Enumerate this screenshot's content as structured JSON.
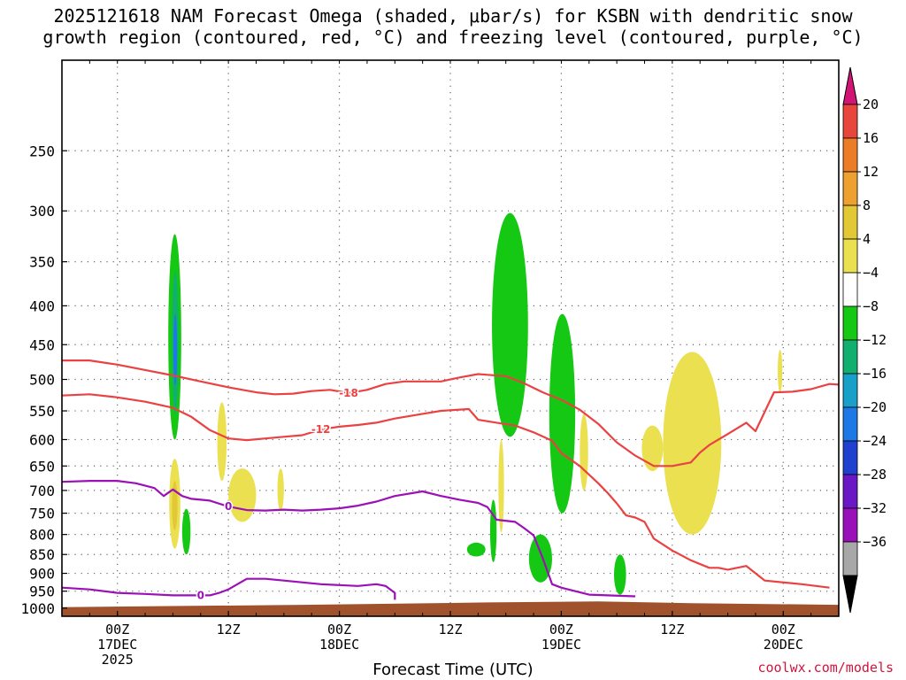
{
  "title_line1": "2025121618 NAM Forecast Omega (shaded, μbar/s) for KSBN with dendritic snow",
  "title_line2": "growth region (contoured, red, °C) and freezing level (contoured, purple, °C)",
  "xlabel": "Forecast Time (UTC)",
  "credit": "coolwx.com/models",
  "chart_data": {
    "type": "contour",
    "title": "2025121618 NAM Forecast Omega (shaded, μbar/s) for KSBN with dendritic snow growth region (contoured, red, °C) and freezing level (contoured, purple, °C)",
    "xlabel": "Forecast Time (UTC)",
    "ylabel": "",
    "xlim_hours": [
      -6,
      78
    ],
    "ylim_hpa": [
      1025,
      190
    ],
    "y_scale": "log pressure",
    "grid": true,
    "y_ticks": [
      250,
      300,
      350,
      400,
      450,
      500,
      550,
      600,
      650,
      700,
      750,
      800,
      850,
      900,
      950,
      1000
    ],
    "x_ticks": [
      {
        "hour": 0,
        "lines": [
          "00Z",
          "17DEC",
          "2025"
        ]
      },
      {
        "hour": 12,
        "lines": [
          "12Z"
        ]
      },
      {
        "hour": 24,
        "lines": [
          "00Z",
          "18DEC"
        ]
      },
      {
        "hour": 36,
        "lines": [
          "12Z"
        ]
      },
      {
        "hour": 48,
        "lines": [
          "00Z",
          "19DEC"
        ]
      },
      {
        "hour": 60,
        "lines": [
          "12Z"
        ]
      },
      {
        "hour": 72,
        "lines": [
          "00Z",
          "20DEC"
        ]
      }
    ],
    "colorbar": {
      "levels": [
        -36,
        -32,
        -28,
        -24,
        -20,
        -16,
        -12,
        -8,
        -4,
        4,
        8,
        12,
        16,
        20
      ],
      "labels": [
        "20",
        "16",
        "12",
        "8",
        "4",
        "−4",
        "−8",
        "−12",
        "−16",
        "−20",
        "−24",
        "−28",
        "−32",
        "−36"
      ],
      "colors_top_to_bottom": [
        "#d21474",
        "#e8453c",
        "#ec7c28",
        "#eea030",
        "#e2c834",
        "#eae050",
        "#ffffff",
        "#14c814",
        "#12b070",
        "#18a0c8",
        "#1e78e6",
        "#2040d0",
        "#6a18c6",
        "#9a10b8",
        "#a8a8a8",
        "#000000"
      ]
    },
    "ground_color": "#a0522d",
    "contours": [
      {
        "label": "-18",
        "color": "#ea4242",
        "points": [
          [
            -6,
            472
          ],
          [
            -3,
            472
          ],
          [
            0,
            478
          ],
          [
            3,
            486
          ],
          [
            6,
            494
          ],
          [
            9,
            503
          ],
          [
            12,
            512
          ],
          [
            15,
            520
          ],
          [
            17,
            523
          ],
          [
            19,
            522
          ],
          [
            21,
            518
          ],
          [
            23,
            516
          ],
          [
            25,
            521
          ],
          [
            27,
            516
          ],
          [
            29,
            507
          ],
          [
            31,
            503
          ],
          [
            33,
            503
          ],
          [
            35,
            503
          ],
          [
            37,
            497
          ],
          [
            39,
            492
          ],
          [
            40,
            493
          ],
          [
            42,
            495
          ],
          [
            44,
            506
          ],
          [
            46,
            520
          ],
          [
            48,
            532
          ],
          [
            50,
            548
          ],
          [
            52,
            572
          ],
          [
            54,
            605
          ],
          [
            56,
            630
          ],
          [
            58,
            650
          ],
          [
            60,
            650
          ],
          [
            62,
            643
          ],
          [
            63,
            624
          ],
          [
            64,
            610
          ],
          [
            66,
            590
          ],
          [
            68,
            570
          ],
          [
            69,
            585
          ],
          [
            71,
            520
          ],
          [
            73,
            519
          ],
          [
            75,
            515
          ],
          [
            77,
            507
          ],
          [
            78,
            508
          ]
        ]
      },
      {
        "label": "-12",
        "color": "#ea4242",
        "points": [
          [
            -6,
            525
          ],
          [
            -3,
            523
          ],
          [
            0,
            528
          ],
          [
            3,
            535
          ],
          [
            6,
            545
          ],
          [
            8,
            560
          ],
          [
            10,
            583
          ],
          [
            12,
            598
          ],
          [
            14,
            601
          ],
          [
            16,
            598
          ],
          [
            18,
            595
          ],
          [
            20,
            592
          ],
          [
            22,
            582
          ],
          [
            24,
            577
          ],
          [
            26,
            574
          ],
          [
            28,
            570
          ],
          [
            30,
            563
          ],
          [
            33,
            555
          ],
          [
            35,
            550
          ],
          [
            38,
            547
          ],
          [
            39,
            565
          ],
          [
            41,
            570
          ],
          [
            43,
            575
          ],
          [
            45,
            587
          ],
          [
            47,
            602
          ],
          [
            48,
            625
          ],
          [
            50,
            650
          ],
          [
            52,
            685
          ],
          [
            53,
            705
          ],
          [
            54,
            728
          ],
          [
            55,
            755
          ],
          [
            56,
            760
          ],
          [
            57,
            770
          ],
          [
            58,
            810
          ],
          [
            60,
            840
          ],
          [
            62,
            865
          ],
          [
            64,
            885
          ],
          [
            65,
            885
          ],
          [
            66,
            890
          ],
          [
            68,
            880
          ],
          [
            70,
            920
          ],
          [
            74,
            930
          ],
          [
            77,
            940
          ]
        ]
      },
      {
        "label": "0",
        "color": "#9c10b8",
        "points": [
          [
            -6,
            682
          ],
          [
            -3,
            680
          ],
          [
            0,
            680
          ],
          [
            2,
            685
          ],
          [
            4,
            695
          ],
          [
            5,
            712
          ],
          [
            6,
            698
          ],
          [
            7,
            712
          ],
          [
            8,
            718
          ],
          [
            10,
            722
          ],
          [
            12,
            735
          ],
          [
            14,
            743
          ],
          [
            16,
            744
          ],
          [
            18,
            742
          ],
          [
            20,
            744
          ],
          [
            22,
            742
          ],
          [
            24,
            739
          ],
          [
            26,
            733
          ],
          [
            28,
            724
          ],
          [
            30,
            712
          ],
          [
            33,
            702
          ],
          [
            35,
            712
          ],
          [
            37,
            720
          ],
          [
            39,
            727
          ],
          [
            40,
            736
          ],
          [
            41,
            765
          ],
          [
            43,
            770
          ],
          [
            44,
            785
          ],
          [
            45,
            802
          ],
          [
            46,
            860
          ],
          [
            47,
            930
          ],
          [
            48,
            940
          ],
          [
            51,
            960
          ],
          [
            56,
            965
          ]
        ]
      },
      {
        "label": "0",
        "color": "#9c10b8",
        "points": [
          [
            -6,
            940
          ],
          [
            -3,
            945
          ],
          [
            0,
            955
          ],
          [
            3,
            958
          ],
          [
            6,
            962
          ],
          [
            9,
            962
          ],
          [
            10,
            962
          ],
          [
            11,
            955
          ],
          [
            12,
            945
          ],
          [
            14,
            915
          ],
          [
            16,
            915
          ],
          [
            18,
            920
          ],
          [
            22,
            930
          ],
          [
            26,
            935
          ],
          [
            28,
            930
          ],
          [
            29,
            935
          ],
          [
            30,
            955
          ],
          [
            30,
            975
          ]
        ]
      }
    ],
    "omega_blobs": [
      {
        "value": -8,
        "hour_range": [
          5.5,
          6.9
        ],
        "hpa_range": [
          322,
          600
        ]
      },
      {
        "value": -12,
        "hour_range": [
          5.9,
          6.6
        ],
        "hpa_range": [
          360,
          555
        ]
      },
      {
        "value": -20,
        "hour_range": [
          6.05,
          6.45
        ],
        "hpa_range": [
          410,
          510
        ]
      },
      {
        "value": 4,
        "hour_range": [
          5.6,
          6.8
        ],
        "hpa_range": [
          636,
          835
        ]
      },
      {
        "value": 8,
        "hour_range": [
          5.9,
          6.5
        ],
        "hpa_range": [
          680,
          790
        ]
      },
      {
        "value": 4,
        "hour_range": [
          10.8,
          11.8
        ],
        "hpa_range": [
          536,
          680
        ]
      },
      {
        "value": 4,
        "hour_range": [
          12.0,
          15.0
        ],
        "hpa_range": [
          655,
          770
        ]
      },
      {
        "value": 4,
        "hour_range": [
          17.3,
          18.0
        ],
        "hpa_range": [
          655,
          745
        ]
      },
      {
        "value": -8,
        "hour_range": [
          7.0,
          7.9
        ],
        "hpa_range": [
          740,
          850
        ]
      },
      {
        "value": -8,
        "hour_range": [
          40.5,
          44.4
        ],
        "hpa_range": [
          302,
          595
        ]
      },
      {
        "value": 4,
        "hour_range": [
          41.2,
          41.8
        ],
        "hpa_range": [
          600,
          795
        ]
      },
      {
        "value": -8,
        "hour_range": [
          46.7,
          49.5
        ],
        "hpa_range": [
          410,
          750
        ]
      },
      {
        "value": 4,
        "hour_range": [
          50.0,
          50.9
        ],
        "hpa_range": [
          555,
          700
        ]
      },
      {
        "value": 4,
        "hour_range": [
          56.7,
          59.0
        ],
        "hpa_range": [
          575,
          660
        ]
      },
      {
        "value": 4,
        "hour_range": [
          59.0,
          65.3
        ],
        "hpa_range": [
          460,
          800
        ]
      },
      {
        "value": -8,
        "hour_range": [
          37.8,
          39.8
        ],
        "hpa_range": [
          820,
          855
        ]
      },
      {
        "value": -8,
        "hour_range": [
          40.3,
          41.0
        ],
        "hpa_range": [
          720,
          870
        ]
      },
      {
        "value": -8,
        "hour_range": [
          44.5,
          47.0
        ],
        "hpa_range": [
          800,
          925
        ]
      },
      {
        "value": -8,
        "hour_range": [
          53.7,
          55.0
        ],
        "hpa_range": [
          850,
          960
        ]
      },
      {
        "value": 4,
        "hour_range": [
          71.4,
          71.9
        ],
        "hpa_range": [
          457,
          520
        ]
      }
    ]
  }
}
